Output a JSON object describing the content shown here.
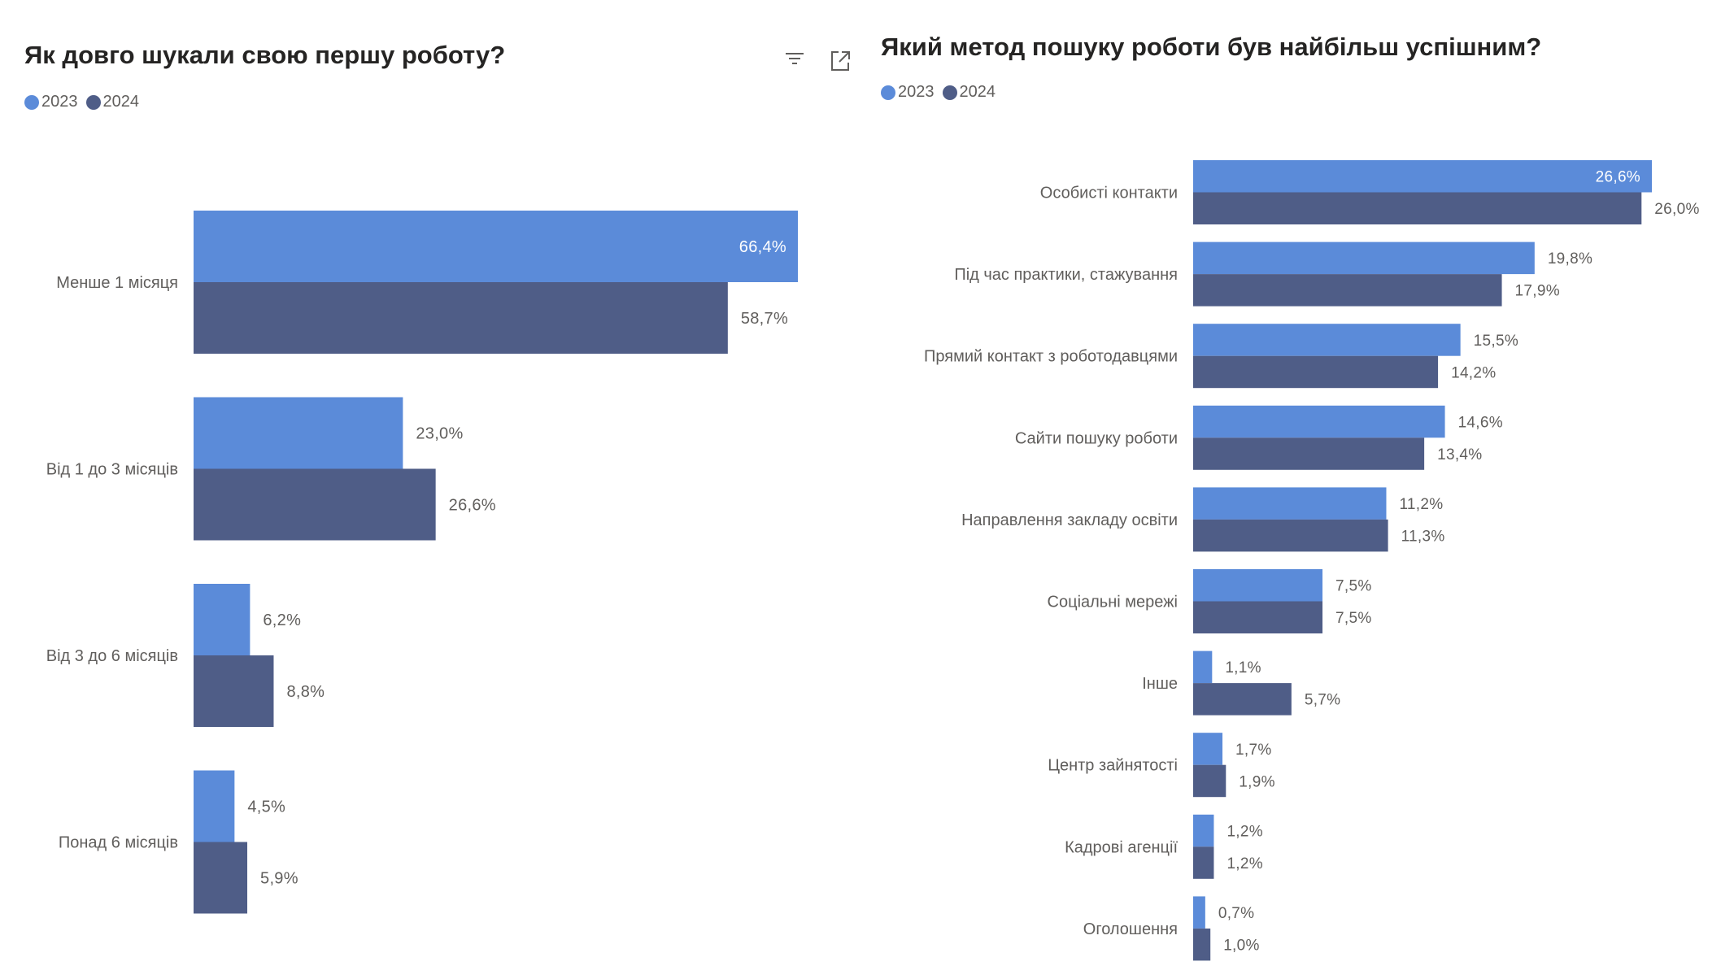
{
  "colors": {
    "y2023": "#5B8BD9",
    "y2024": "#4F5D87"
  },
  "chart_data": [
    {
      "type": "bar",
      "orientation": "horizontal",
      "title": "Як довго шукали свою першу роботу?",
      "legend": [
        "2023",
        "2024"
      ],
      "legend_position": "top-left",
      "categories": [
        "Менше 1 місяця",
        "Від 1 до 3 місяців",
        "Від 3 до 6 місяців",
        "Понад 6 місяців"
      ],
      "series": [
        {
          "name": "2023",
          "values": [
            66.4,
            23.0,
            6.2,
            4.5
          ],
          "labels": [
            "66,4%",
            "23,0%",
            "6,2%",
            "4,5%"
          ]
        },
        {
          "name": "2024",
          "values": [
            58.7,
            26.6,
            8.8,
            5.9
          ],
          "labels": [
            "58,7%",
            "26,6%",
            "8,8%",
            "5,9%"
          ]
        }
      ],
      "xlim": [
        0,
        66.4
      ],
      "grid": false
    },
    {
      "type": "bar",
      "orientation": "horizontal",
      "title": "Який метод пошуку роботи був найбільш успішним?",
      "legend": [
        "2023",
        "2024"
      ],
      "legend_position": "top-left",
      "categories": [
        "Особисті контакти",
        "Під час практики, стажування",
        "Прямий контакт з роботодавцями",
        "Сайти пошуку роботи",
        "Направлення закладу освіти",
        "Соціальні мережі",
        "Інше",
        "Центр зайнятості",
        "Кадрові агенції",
        "Оголошення"
      ],
      "series": [
        {
          "name": "2023",
          "values": [
            26.6,
            19.8,
            15.5,
            14.6,
            11.2,
            7.5,
            1.1,
            1.7,
            1.2,
            0.7
          ],
          "labels": [
            "26,6%",
            "19,8%",
            "15,5%",
            "14,6%",
            "11,2%",
            "7,5%",
            "1,1%",
            "1,7%",
            "1,2%",
            "0,7%"
          ]
        },
        {
          "name": "2024",
          "values": [
            26.0,
            17.9,
            14.2,
            13.4,
            11.3,
            7.5,
            5.7,
            1.9,
            1.2,
            1.0
          ],
          "labels": [
            "26,0%",
            "17,9%",
            "14,2%",
            "13,4%",
            "11,3%",
            "7,5%",
            "5,7%",
            "1,9%",
            "1,2%",
            "1,0%"
          ]
        }
      ],
      "xlim": [
        0,
        26.6
      ],
      "grid": false
    }
  ]
}
